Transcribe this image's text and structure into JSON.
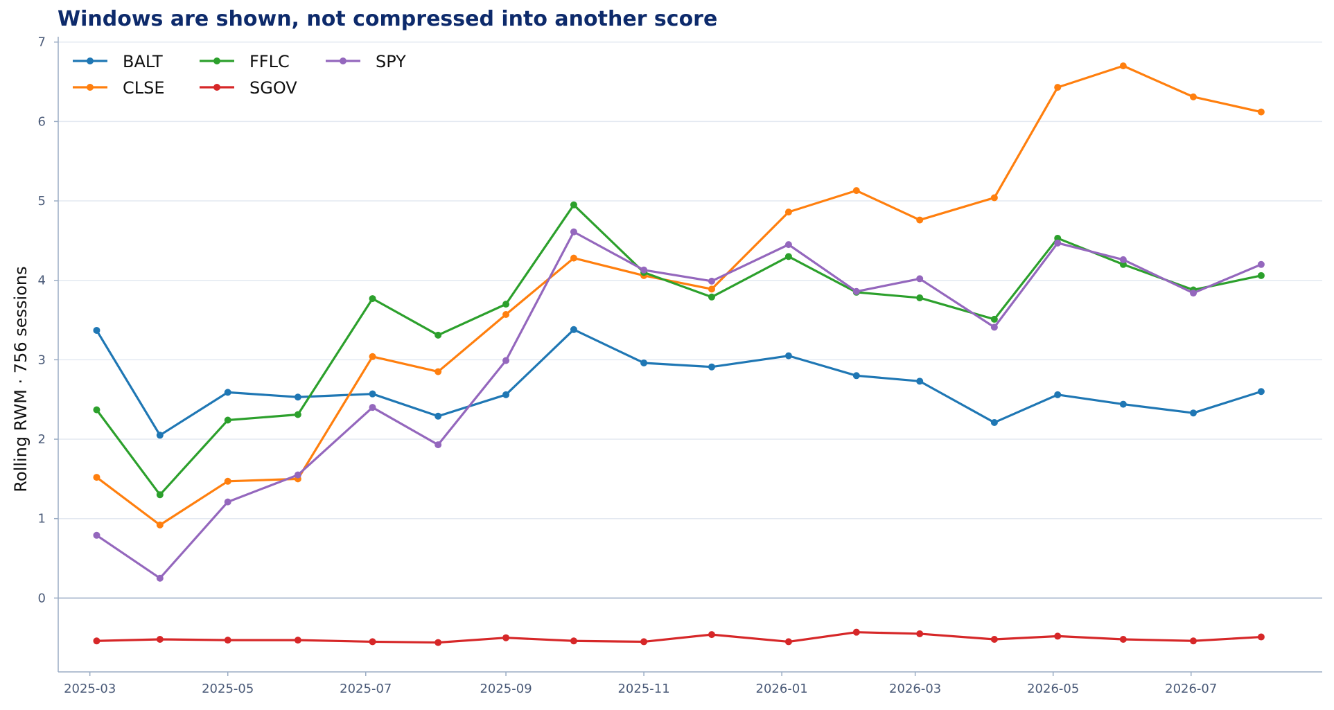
{
  "chart_data": {
    "type": "line",
    "title": "Windows are shown, not compressed into another score",
    "xlabel": "",
    "ylabel": "Rolling RWM · 756 sessions",
    "x": [
      "2025-03-04",
      "2025-04-01",
      "2025-05-01",
      "2025-06-01",
      "2025-07-04",
      "2025-08-02",
      "2025-09-01",
      "2025-10-01",
      "2025-11-01",
      "2025-12-01",
      "2026-01-04",
      "2026-02-03",
      "2026-03-03",
      "2026-04-05",
      "2026-05-03",
      "2026-06-01",
      "2026-07-02",
      "2026-08-01"
    ],
    "xlim": [
      "2025-02-15",
      "2026-08-28"
    ],
    "x_ticks": [
      "2025-03",
      "2025-05",
      "2025-07",
      "2025-09",
      "2025-11",
      "2026-01",
      "2026-03",
      "2026-05",
      "2026-07"
    ],
    "ylim": [
      -0.93,
      7.05
    ],
    "y_ticks": [
      0,
      1,
      2,
      3,
      4,
      5,
      6,
      7
    ],
    "grid": "horizontal",
    "zero_line": true,
    "legend_position": "top-left",
    "series": [
      {
        "name": "BALT",
        "color": "#1f77b4",
        "values": [
          3.37,
          2.05,
          2.59,
          2.53,
          2.57,
          2.29,
          2.56,
          3.38,
          2.96,
          2.91,
          3.05,
          2.8,
          2.73,
          2.21,
          2.56,
          2.44,
          2.33,
          2.6
        ]
      },
      {
        "name": "CLSE",
        "color": "#ff7f0e",
        "values": [
          1.52,
          0.92,
          1.47,
          1.5,
          3.04,
          2.85,
          3.57,
          4.28,
          4.06,
          3.89,
          4.86,
          5.13,
          4.76,
          5.04,
          6.43,
          6.7,
          6.31,
          6.12
        ]
      },
      {
        "name": "FFLC",
        "color": "#2ca02c",
        "values": [
          2.37,
          1.3,
          2.24,
          2.31,
          3.77,
          3.31,
          3.7,
          4.95,
          4.1,
          3.79,
          4.3,
          3.85,
          3.78,
          3.51,
          4.53,
          4.2,
          3.88,
          4.06
        ]
      },
      {
        "name": "SGOV",
        "color": "#d62728",
        "values": [
          -0.54,
          -0.52,
          -0.53,
          -0.53,
          -0.55,
          -0.56,
          -0.5,
          -0.54,
          -0.55,
          -0.46,
          -0.55,
          -0.43,
          -0.45,
          -0.52,
          -0.48,
          -0.52,
          -0.54,
          -0.49
        ]
      },
      {
        "name": "SPY",
        "color": "#9467bd",
        "values": [
          0.79,
          0.25,
          1.21,
          1.55,
          2.4,
          1.93,
          2.99,
          4.61,
          4.13,
          3.99,
          4.45,
          3.86,
          4.02,
          3.41,
          4.47,
          4.26,
          3.84,
          4.2
        ]
      }
    ],
    "colors": {
      "title": "#0d2a6b",
      "grid": "#e3e9f1",
      "axis": "#9aacc4",
      "tick_label": "#4a5a78"
    }
  }
}
